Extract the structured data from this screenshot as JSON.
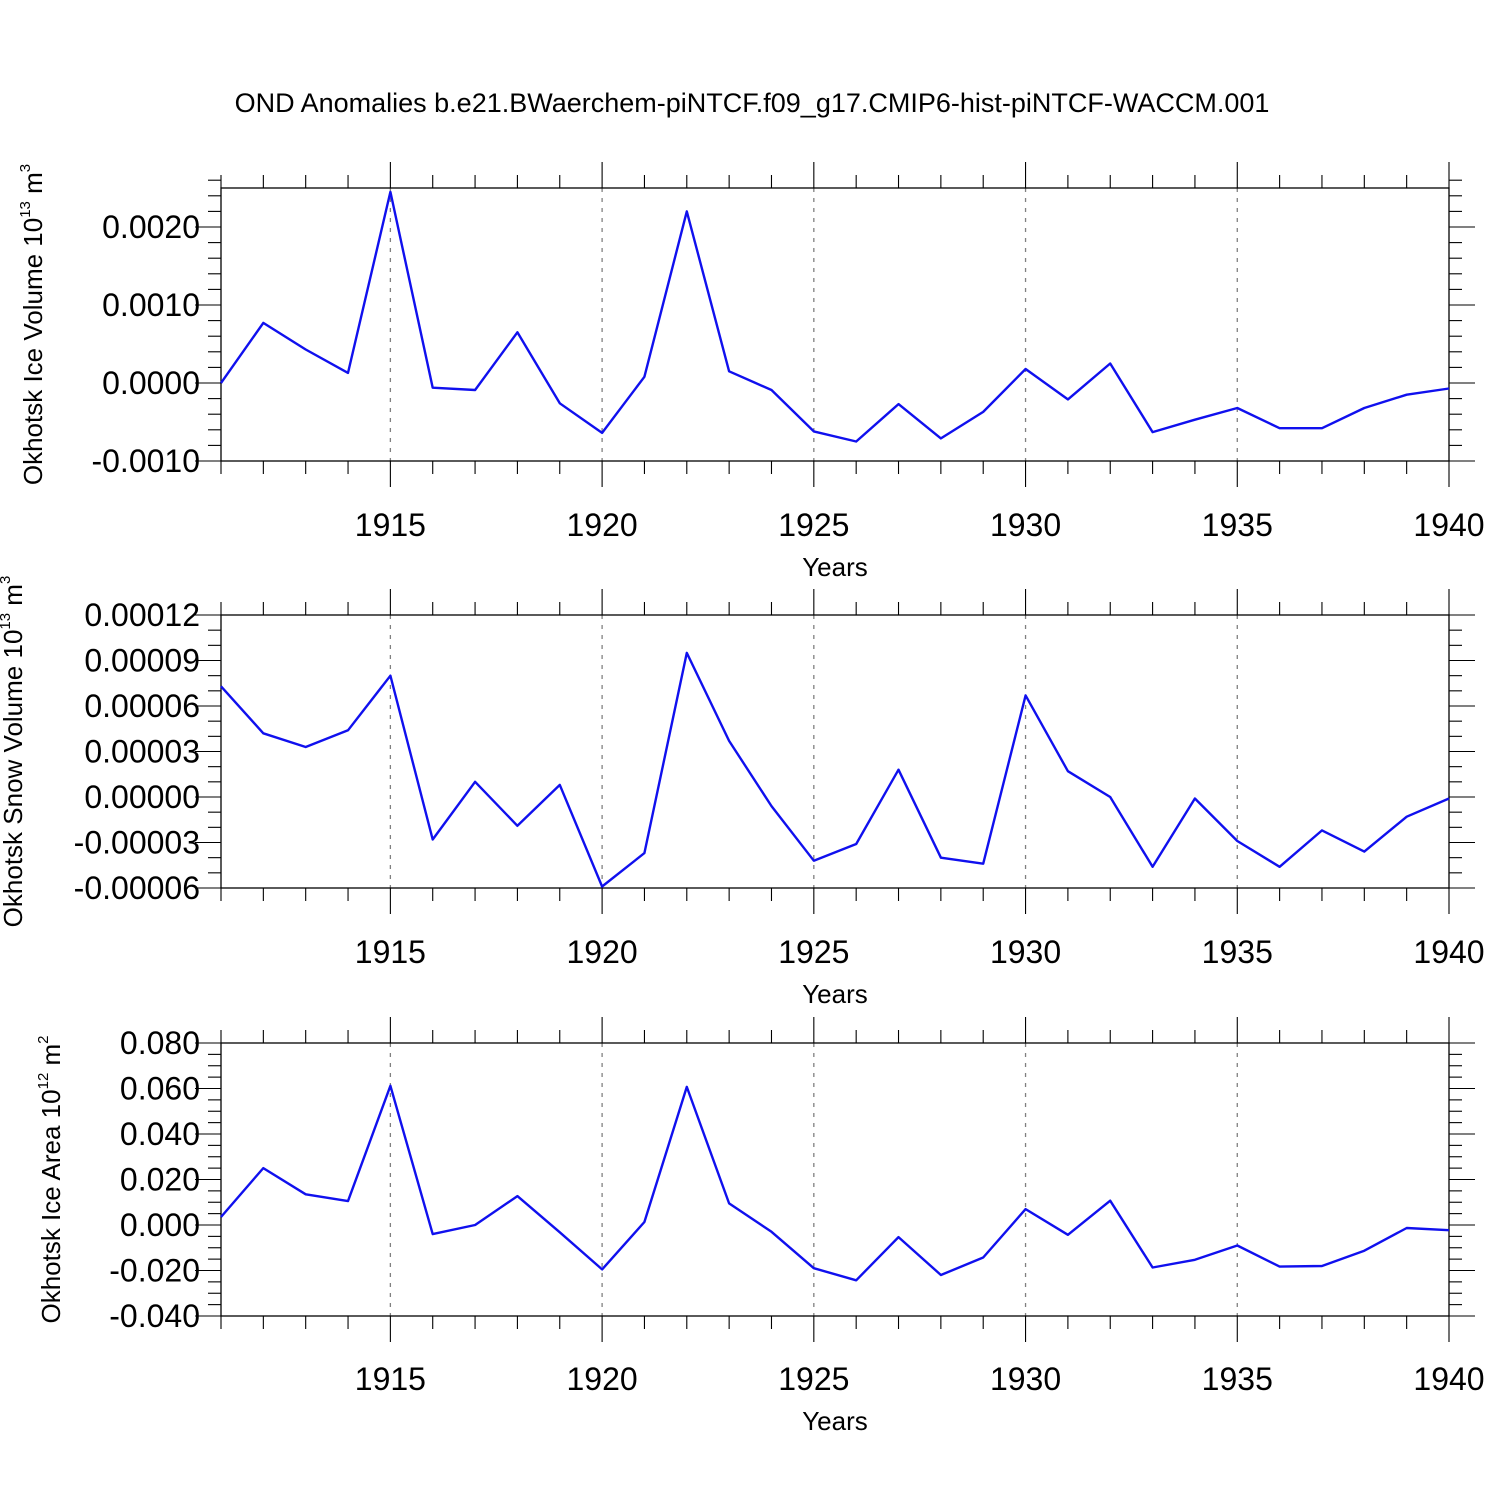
{
  "title": "OND Anomalies b.e21.BWaerchem-piNTCF.f09_g17.CMIP6-hist-piNTCF-WACCM.001",
  "colors": {
    "line": "#1010ee",
    "axis": "#000000",
    "grid": "#808080"
  },
  "chart_data": [
    {
      "type": "line",
      "ylabel_main": "Okhotsk Ice Volume 10",
      "ylabel_exp": "13",
      "ylabel_unit": "m",
      "ylabel_unit_exp": "3",
      "xlabel": "Years",
      "xlim": [
        1911,
        1940
      ],
      "ylim": [
        -0.001,
        0.0025
      ],
      "yticks": [
        -0.001,
        0.0,
        0.001,
        0.002
      ],
      "ytick_labels": [
        "-0.0010",
        "0.0000",
        "0.0010",
        "0.0020"
      ],
      "yminor_step": 0.0002,
      "xticks": [
        1915,
        1920,
        1925,
        1930,
        1935,
        1940
      ],
      "xtick_labels": [
        "1915",
        "1920",
        "1925",
        "1930",
        "1935",
        "1940"
      ],
      "x": [
        1911,
        1912,
        1913,
        1914,
        1915,
        1916,
        1917,
        1918,
        1919,
        1920,
        1921,
        1922,
        1923,
        1924,
        1925,
        1926,
        1927,
        1928,
        1929,
        1930,
        1931,
        1932,
        1933,
        1934,
        1935,
        1936,
        1937,
        1938,
        1939,
        1940
      ],
      "values": [
        0.0,
        0.00077,
        0.00043,
        0.00013,
        0.00245,
        -6e-05,
        -9e-05,
        0.00065,
        -0.00026,
        -0.00064,
        8e-05,
        0.0022,
        0.00015,
        -9e-05,
        -0.00062,
        -0.00075,
        -0.00027,
        -0.00071,
        -0.00037,
        0.00018,
        -0.00021,
        0.00025,
        -0.00063,
        -0.00047,
        -0.00032,
        -0.00058,
        -0.00058,
        -0.00032,
        -0.00015,
        -7e-05
      ]
    },
    {
      "type": "line",
      "ylabel_main": "Okhotsk Snow Volume 10",
      "ylabel_exp": "13",
      "ylabel_unit": "m",
      "ylabel_unit_exp": "3",
      "xlabel": "Years",
      "xlim": [
        1911,
        1940
      ],
      "ylim": [
        -6e-05,
        0.00012
      ],
      "yticks": [
        -6e-05,
        -3e-05,
        0.0,
        3e-05,
        6e-05,
        9e-05,
        0.00012
      ],
      "ytick_labels": [
        "-0.00006",
        "-0.00003",
        "0.00000",
        "0.00003",
        "0.00006",
        "0.00009",
        "0.00012"
      ],
      "yminor_step": 1e-05,
      "xticks": [
        1915,
        1920,
        1925,
        1930,
        1935,
        1940
      ],
      "xtick_labels": [
        "1915",
        "1920",
        "1925",
        "1930",
        "1935",
        "1940"
      ],
      "x": [
        1911,
        1912,
        1913,
        1914,
        1915,
        1916,
        1917,
        1918,
        1919,
        1920,
        1921,
        1922,
        1923,
        1924,
        1925,
        1926,
        1927,
        1928,
        1929,
        1930,
        1931,
        1932,
        1933,
        1934,
        1935,
        1936,
        1937,
        1938,
        1939,
        1940
      ],
      "values": [
        7.3e-05,
        4.2e-05,
        3.3e-05,
        4.4e-05,
        8e-05,
        -2.8e-05,
        1e-05,
        -1.9e-05,
        8e-06,
        -5.9e-05,
        -3.7e-05,
        9.5e-05,
        3.7e-05,
        -6e-06,
        -4.2e-05,
        -3.1e-05,
        1.8e-05,
        -4e-05,
        -4.4e-05,
        6.7e-05,
        1.7e-05,
        0.0,
        -4.6e-05,
        -1e-06,
        -2.9e-05,
        -4.6e-05,
        -2.2e-05,
        -3.6e-05,
        -1.3e-05,
        -1e-06
      ]
    },
    {
      "type": "line",
      "ylabel_main": "Okhotsk Ice Area 10",
      "ylabel_exp": "12",
      "ylabel_unit": "m",
      "ylabel_unit_exp": "2",
      "xlabel": "Years",
      "xlim": [
        1911,
        1940
      ],
      "ylim": [
        -0.04,
        0.08
      ],
      "yticks": [
        -0.04,
        -0.02,
        0.0,
        0.02,
        0.04,
        0.06,
        0.08
      ],
      "ytick_labels": [
        "-0.040",
        "-0.020",
        "0.000",
        "0.020",
        "0.040",
        "0.060",
        "0.080"
      ],
      "yminor_step": 0.005,
      "xticks": [
        1915,
        1920,
        1925,
        1930,
        1935,
        1940
      ],
      "xtick_labels": [
        "1915",
        "1920",
        "1925",
        "1930",
        "1935",
        "1940"
      ],
      "x": [
        1911,
        1912,
        1913,
        1914,
        1915,
        1916,
        1917,
        1918,
        1919,
        1920,
        1921,
        1922,
        1923,
        1924,
        1925,
        1926,
        1927,
        1928,
        1929,
        1930,
        1931,
        1932,
        1933,
        1934,
        1935,
        1936,
        1937,
        1938,
        1939,
        1940
      ],
      "values": [
        0.0035,
        0.025,
        0.0135,
        0.0105,
        0.0612,
        -0.004,
        0.0,
        0.0127,
        -0.0032,
        -0.0195,
        0.0013,
        0.0607,
        0.0095,
        -0.003,
        -0.019,
        -0.0243,
        -0.0053,
        -0.022,
        -0.0143,
        0.007,
        -0.0043,
        0.0107,
        -0.0187,
        -0.0153,
        -0.009,
        -0.0183,
        -0.018,
        -0.0113,
        -0.0013,
        -0.0023
      ]
    }
  ]
}
